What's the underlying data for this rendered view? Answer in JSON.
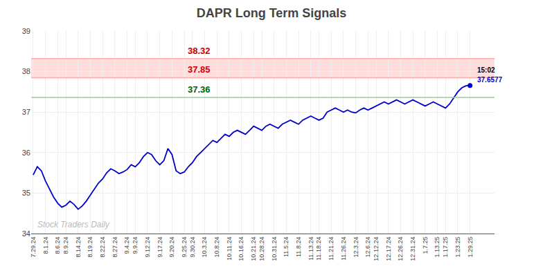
{
  "chart_data": {
    "type": "line",
    "title": "DAPR Long Term Signals",
    "categories": [
      "7.29.24",
      null,
      null,
      "8.1.24",
      null,
      null,
      "8.6.24",
      null,
      "8.9.24",
      null,
      null,
      "8.14.24",
      null,
      null,
      "8.19.24",
      null,
      null,
      "8.22.24",
      null,
      null,
      "8.27.24",
      null,
      null,
      "9.4.24",
      null,
      "9.9.24",
      null,
      null,
      "9.12.24",
      null,
      null,
      "9.17.24",
      null,
      null,
      "9.20.24",
      null,
      null,
      "9.25.24",
      null,
      "9.30.24",
      null,
      null,
      "10.3.24",
      null,
      null,
      "10.8.24",
      null,
      null,
      "10.11.24",
      null,
      null,
      "10.16.24",
      null,
      null,
      "10.21.24",
      null,
      "10.28.24",
      null,
      null,
      "10.31.24",
      null,
      null,
      "11.5.24",
      null,
      null,
      "11.8.24",
      null,
      null,
      "11.13.24",
      null,
      "11.18.24",
      null,
      null,
      "11.21.24",
      null,
      null,
      "11.26.24",
      null,
      null,
      "12.3.24",
      null,
      null,
      "12.6.24",
      null,
      "12.12.24",
      null,
      null,
      "12.17.24",
      null,
      null,
      "12.26.24",
      null,
      null,
      "12.31.24",
      null,
      null,
      "1.7.25",
      null,
      null,
      "1.13.25",
      null,
      "1.17.25",
      null,
      null,
      "1.23.25",
      null,
      null,
      "1.29.25"
    ],
    "values": [
      35.45,
      35.65,
      35.55,
      35.3,
      35.1,
      34.9,
      34.75,
      34.65,
      34.7,
      34.8,
      34.72,
      34.6,
      34.68,
      34.8,
      34.95,
      35.1,
      35.25,
      35.35,
      35.5,
      35.6,
      35.55,
      35.48,
      35.52,
      35.58,
      35.7,
      35.65,
      35.75,
      35.9,
      36.0,
      35.95,
      35.8,
      35.7,
      35.8,
      36.1,
      35.95,
      35.55,
      35.48,
      35.52,
      35.65,
      35.75,
      35.9,
      36.0,
      36.1,
      36.2,
      36.3,
      36.25,
      36.35,
      36.45,
      36.4,
      36.5,
      36.55,
      36.5,
      36.45,
      36.55,
      36.65,
      36.6,
      36.55,
      36.65,
      36.7,
      36.65,
      36.6,
      36.7,
      36.75,
      36.8,
      36.75,
      36.7,
      36.8,
      36.85,
      36.9,
      36.85,
      36.8,
      36.85,
      37.0,
      37.05,
      37.1,
      37.05,
      37.0,
      37.05,
      37.0,
      36.98,
      37.05,
      37.1,
      37.05,
      37.1,
      37.15,
      37.2,
      37.25,
      37.2,
      37.25,
      37.3,
      37.25,
      37.2,
      37.25,
      37.3,
      37.25,
      37.2,
      37.15,
      37.2,
      37.25,
      37.2,
      37.15,
      37.1,
      37.2,
      37.35,
      37.5,
      37.6,
      37.65,
      37.6577
    ],
    "color": "#0000cc",
    "ylim": [
      34,
      39
    ],
    "yticks": [
      34,
      35,
      36,
      37,
      38,
      39
    ],
    "grid": true,
    "hlines": [
      {
        "value": 38.32,
        "label": "38.32",
        "color": "#ffaaaa",
        "label_color": "#cc0000"
      },
      {
        "value": 37.85,
        "label": "37.85",
        "color": "#ffaaaa",
        "label_color": "#cc0000"
      },
      {
        "value": 37.36,
        "label": "37.36",
        "color": "#99cc99",
        "label_color": "#006600"
      }
    ],
    "band_color": "#ffdddd",
    "last_point": {
      "label": "15:02",
      "value": 37.6577,
      "color": "#0000cc"
    },
    "watermark": "Stock Traders Daily",
    "watermark_color": "#bbbbbb"
  }
}
